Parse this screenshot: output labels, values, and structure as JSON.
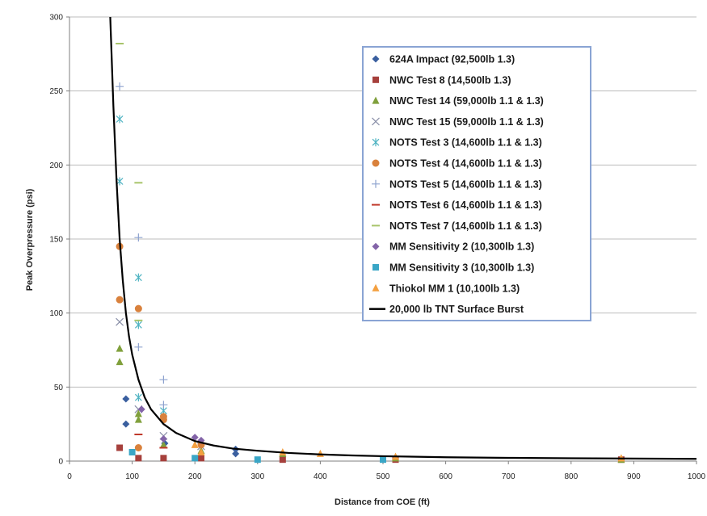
{
  "chart_data": {
    "type": "scatter",
    "title": "",
    "xlabel": "Distance from COE (ft)",
    "ylabel": "Peak Overpressure (psi)",
    "xlim": [
      0,
      1000
    ],
    "ylim": [
      0,
      300
    ],
    "xticks": [
      0,
      100,
      200,
      300,
      400,
      500,
      600,
      700,
      800,
      900,
      1000
    ],
    "yticks": [
      0,
      50,
      100,
      150,
      200,
      250,
      300
    ],
    "grid": "horizontal",
    "legend_position": "top-right",
    "series": [
      {
        "name": "624A Impact (92,500lb 1.3)",
        "marker": "diamond",
        "color": "#3a5f9f",
        "x": [
          90,
          90,
          152,
          265,
          265
        ],
        "y": [
          42,
          25,
          12,
          8,
          5
        ]
      },
      {
        "name": "NWC Test 8 (14,500lb 1.3)",
        "marker": "square",
        "color": "#a6403c",
        "x": [
          80,
          110,
          150,
          210,
          340,
          520,
          880
        ],
        "y": [
          9,
          2,
          2,
          2,
          1,
          1,
          1
        ]
      },
      {
        "name": "NWC Test 14 (59,000lb 1.1 & 1.3)",
        "marker": "triangle",
        "color": "#80a03c",
        "x": [
          80,
          80,
          110,
          110,
          150,
          210,
          340,
          520,
          880
        ],
        "y": [
          76,
          67,
          32,
          28,
          11,
          7,
          5,
          2,
          1
        ]
      },
      {
        "name": "NWC Test 15 (59,000lb 1.1 & 1.3)",
        "marker": "x",
        "color": "#8a8fa8",
        "x": [
          80,
          110,
          150,
          210
        ],
        "y": [
          94,
          35,
          17,
          10
        ]
      },
      {
        "name": "NOTS Test 3 (14,600lb 1.1 & 1.3)",
        "marker": "asterisk",
        "color": "#4fb3c2",
        "x": [
          80,
          80,
          110,
          110,
          110,
          150
        ],
        "y": [
          231,
          189,
          124,
          92,
          43,
          34
        ]
      },
      {
        "name": "NOTS Test 4 (14,600lb 1.1 & 1.3)",
        "marker": "circle",
        "color": "#d9813c",
        "x": [
          80,
          80,
          110,
          110,
          150,
          150,
          210
        ],
        "y": [
          145,
          109,
          103,
          9,
          30,
          28,
          11
        ]
      },
      {
        "name": "NOTS Test 5 (14,600lb 1.1 & 1.3)",
        "marker": "plus",
        "color": "#8ea3cf",
        "x": [
          80,
          110,
          110,
          150,
          150
        ],
        "y": [
          253,
          151,
          77,
          55,
          38
        ]
      },
      {
        "name": "NOTS Test 6 (14,600lb 1.1 & 1.3)",
        "marker": "dash",
        "color": "#c0392b",
        "x": [
          110,
          150
        ],
        "y": [
          18,
          9
        ]
      },
      {
        "name": "NOTS Test 7 (14,600lb 1.1 & 1.3)",
        "marker": "dash",
        "color": "#a8c46a",
        "x": [
          80,
          110,
          110
        ],
        "y": [
          282,
          188,
          95
        ]
      },
      {
        "name": "MM Sensitivity 2 (10,300lb 1.3)",
        "marker": "diamond",
        "color": "#8364a8",
        "x": [
          115,
          150,
          200,
          210
        ],
        "y": [
          35,
          15,
          16,
          14
        ]
      },
      {
        "name": "MM Sensitivity 3 (10,300lb 1.3)",
        "marker": "square",
        "color": "#3aa6c6",
        "x": [
          100,
          200,
          300,
          500
        ],
        "y": [
          6,
          2,
          1,
          1
        ]
      },
      {
        "name": "Thiokol MM 1 (10,100lb 1.3)",
        "marker": "triangle",
        "color": "#f4a040",
        "x": [
          200,
          210,
          340,
          400,
          520,
          880
        ],
        "y": [
          11,
          6,
          6,
          5,
          3,
          2
        ]
      },
      {
        "name": "20,000 lb TNT Surface Burst",
        "marker": "line",
        "color": "#000000",
        "x": [
          65,
          70,
          75,
          80,
          85,
          90,
          95,
          100,
          110,
          120,
          130,
          150,
          170,
          200,
          230,
          260,
          300,
          350,
          400,
          450,
          500,
          600,
          700,
          800,
          900,
          1000
        ],
        "y": [
          300,
          240,
          190,
          150,
          122,
          100,
          84,
          72,
          55,
          43,
          35,
          25,
          19,
          13.5,
          10.5,
          8.5,
          7,
          5.5,
          4.5,
          3.8,
          3.3,
          2.6,
          2.2,
          1.9,
          1.7,
          1.5
        ]
      }
    ]
  }
}
